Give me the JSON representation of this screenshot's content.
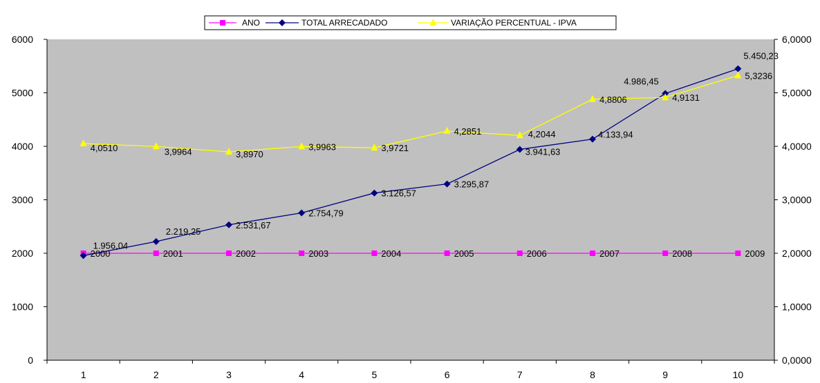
{
  "chart_data": {
    "type": "line",
    "categories": [
      "1",
      "2",
      "3",
      "4",
      "5",
      "6",
      "7",
      "8",
      "9",
      "10"
    ],
    "y_left": {
      "min": 0,
      "max": 6000,
      "ticks": [
        "0",
        "1000",
        "2000",
        "3000",
        "4000",
        "5000",
        "6000"
      ]
    },
    "y_right": {
      "min": 0,
      "max": 6,
      "ticks": [
        "0,0000",
        "1,0000",
        "2,0000",
        "3,0000",
        "4,0000",
        "5,0000",
        "6,0000"
      ]
    },
    "grid": false,
    "legend_position": "top-center",
    "plot_background": "#C0C0C0",
    "series": [
      {
        "name": "ANO",
        "axis": "right",
        "color": "#FF00FF",
        "marker": "square",
        "values": [
          2,
          2,
          2,
          2,
          2,
          2,
          2,
          2,
          2,
          2
        ],
        "labels": [
          "2000",
          "2001",
          "2002",
          "2003",
          "2004",
          "2005",
          "2006",
          "2007",
          "2008",
          "2009"
        ]
      },
      {
        "name": "TOTAL ARRECADADO",
        "axis": "left",
        "color": "#000080",
        "marker": "diamond",
        "values": [
          1956.04,
          2219.25,
          2531.67,
          2754.79,
          3126.57,
          3295.87,
          3941.63,
          4133.94,
          4986.45,
          5450.23
        ],
        "labels": [
          "1.956,04",
          "2.219,25",
          "2.531,67",
          "2.754,79",
          "3.126,57",
          "3.295,87",
          "3.941,63",
          "4.133,94",
          "4.986,45",
          "5.450,23"
        ]
      },
      {
        "name": "VARIAÇÃO PERCENTUAL - IPVA",
        "axis": "right",
        "color": "#FFFF00",
        "marker": "triangle",
        "values": [
          4.051,
          3.9964,
          3.897,
          3.9963,
          3.9721,
          4.2851,
          4.2044,
          4.8806,
          4.9131,
          5.3236
        ],
        "labels": [
          "4,0510",
          "3,9964",
          "3,8970",
          "3,9963",
          "3,9721",
          "4,2851",
          "4,2044",
          "4,8806",
          "4,9131",
          "5,3236"
        ]
      }
    ]
  }
}
